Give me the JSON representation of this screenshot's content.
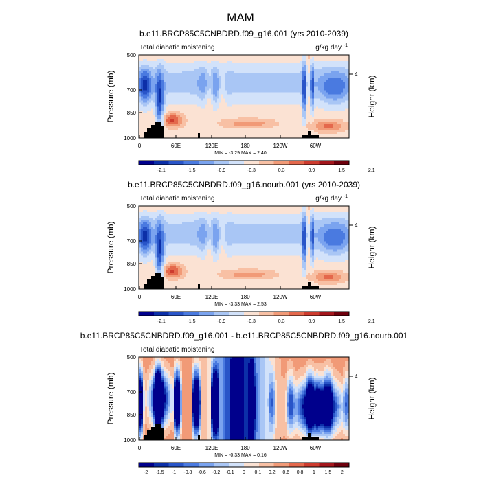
{
  "main_title": "MAM",
  "palette": [
    "#00008c",
    "#0c2fa8",
    "#2955c8",
    "#4a7ae0",
    "#7aa3ef",
    "#a9c6f5",
    "#d2e2fa",
    "#fbe2d3",
    "#f8c0a4",
    "#f19a77",
    "#e4684c",
    "#cd3b2e",
    "#a3161c",
    "#6e000d"
  ],
  "chart_data": [
    {
      "type": "heatmap",
      "title": "b.e11.BRCP85C5CNBDRD.f09_g16.001 (yrs 2010-2039)",
      "left_label": "Total diabatic moistening",
      "units_base": "g/kg day",
      "units_exp": "-1",
      "ylabel": "Pressure (mb)",
      "y2label": "Height (km)",
      "y2ticks": [
        "4"
      ],
      "yticks": [
        "500",
        "700",
        "850",
        "1000"
      ],
      "xticks": [
        "0",
        "60E",
        "120E",
        "180",
        "120W",
        "60W"
      ],
      "ylim": [
        1000,
        500
      ],
      "min_max": "MIN = -3.29  MAX =  2.40",
      "colorbar_ticks": [
        "-2.1",
        "-1.5",
        "-0.9",
        "-0.3",
        "0.3",
        "0.9",
        "1.5",
        "2.1"
      ],
      "scale": 1.0
    },
    {
      "type": "heatmap",
      "title": "b.e11.BRCP85C5CNBDRD.f09_g16.nourb.001 (yrs 2010-2039)",
      "left_label": "Total diabatic moistening",
      "units_base": "g/kg day",
      "units_exp": "-1",
      "ylabel": "Pressure (mb)",
      "y2label": "Height (km)",
      "y2ticks": [
        "4"
      ],
      "yticks": [
        "500",
        "700",
        "850",
        "1000"
      ],
      "xticks": [
        "0",
        "60E",
        "120E",
        "180",
        "120W",
        "60W"
      ],
      "ylim": [
        1000,
        500
      ],
      "min_max": "MIN = -3.33  MAX =  2.53",
      "colorbar_ticks": [
        "-2.1",
        "-1.5",
        "-0.9",
        "-0.3",
        "0.3",
        "0.9",
        "1.5",
        "2.1"
      ],
      "scale": 1.0
    },
    {
      "type": "heatmap",
      "title": "b.e11.BRCP85C5CNBDRD.f09_g16.001 - b.e11.BRCP85C5CNBDRD.f09_g16.nourb.001",
      "left_label": "Total diabatic moistening",
      "units_base": "",
      "units_exp": "",
      "ylabel": "Pressure (mb)",
      "y2label": "Height (km)",
      "y2ticks": [
        "4"
      ],
      "yticks": [
        "500",
        "700",
        "850",
        "1000"
      ],
      "xticks": [
        "0",
        "60E",
        "120E",
        "180",
        "120W",
        "60W"
      ],
      "ylim": [
        1000,
        500
      ],
      "min_max": "MIN = -0.33  MAX =  0.16",
      "colorbar_ticks": [
        "-2",
        "-1.5",
        "-1",
        "-0.8",
        "-0.6",
        "-0.2",
        "-0.1",
        "0",
        "0.1",
        "0.2",
        "0.6",
        "0.8",
        "1",
        "1.5",
        "2"
      ],
      "scale": 0.12
    }
  ]
}
